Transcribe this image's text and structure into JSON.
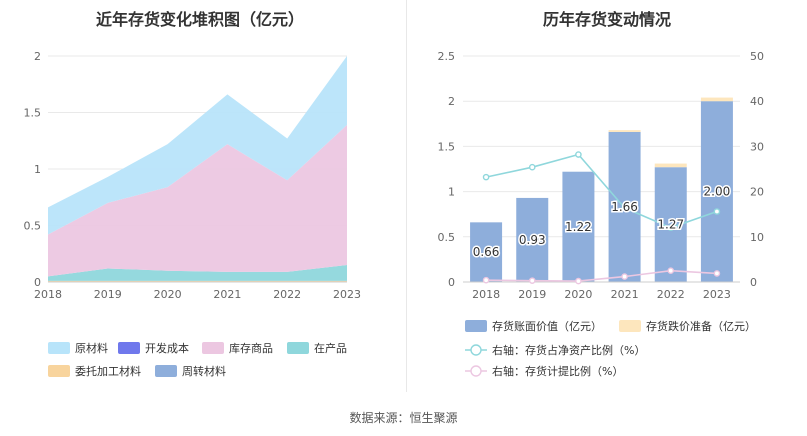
{
  "source": "数据来源：恒生聚源",
  "chart_data": [
    {
      "type": "area",
      "title": "近年存货变化堆积图（亿元）",
      "x": [
        "2018",
        "2019",
        "2020",
        "2021",
        "2022",
        "2023"
      ],
      "ylim": [
        0,
        2
      ],
      "yticks": [
        "0",
        "0.5",
        "1",
        "1.5",
        "2"
      ],
      "series": [
        {
          "name": "原材料",
          "color": "#b8e4fa",
          "values": [
            0.24,
            0.23,
            0.38,
            0.44,
            0.37,
            0.61
          ]
        },
        {
          "name": "开发成本",
          "color": "#6f78ec",
          "values": [
            0,
            0,
            0,
            0,
            0,
            0
          ]
        },
        {
          "name": "库存商品",
          "color": "#ecc7e1",
          "values": [
            0.37,
            0.58,
            0.74,
            1.13,
            0.81,
            1.24
          ]
        },
        {
          "name": "在产品",
          "color": "#8fd7dc",
          "values": [
            0.04,
            0.11,
            0.09,
            0.08,
            0.08,
            0.14
          ]
        },
        {
          "name": "委托加工材料",
          "color": "#f8d49d",
          "values": [
            0.01,
            0.01,
            0.01,
            0.01,
            0.01,
            0.01
          ]
        },
        {
          "name": "周转材料",
          "color": "#8eaedb",
          "values": [
            0,
            0,
            0,
            0,
            0,
            0
          ]
        }
      ]
    },
    {
      "type": "bar+line",
      "title": "历年存货变动情况",
      "x": [
        "2018",
        "2019",
        "2020",
        "2021",
        "2022",
        "2023"
      ],
      "ylim_left": [
        0,
        2.5
      ],
      "yticks_left": [
        "0",
        "0.5",
        "1",
        "1.5",
        "2",
        "2.5"
      ],
      "ylim_right": [
        0,
        50
      ],
      "yticks_right": [
        "0",
        "10",
        "20",
        "30",
        "40",
        "50"
      ],
      "bar_series": {
        "name": "存货账面价值（亿元）",
        "color": "#8eaedb",
        "values": [
          0.66,
          0.93,
          1.22,
          1.66,
          1.27,
          2.0
        ],
        "labels": [
          "0.66",
          "0.93",
          "1.22",
          "1.66",
          "1.27",
          "2.00"
        ]
      },
      "bar_stack_series": {
        "name": "存货跌价准备（亿元）",
        "color": "#fde6bd",
        "values": [
          0.0,
          0.0,
          0.0,
          0.02,
          0.04,
          0.04
        ]
      },
      "line_series": [
        {
          "name": "右轴：存货占净资产比例（%）",
          "color": "#8fd7dc",
          "values": [
            23.2,
            25.4,
            28.2,
            16.4,
            12.0,
            15.6
          ]
        },
        {
          "name": "右轴：存货计提比例（%）",
          "color": "#ecc7e1",
          "values": [
            0.4,
            0.3,
            0.2,
            1.2,
            2.5,
            1.9
          ]
        }
      ]
    }
  ]
}
